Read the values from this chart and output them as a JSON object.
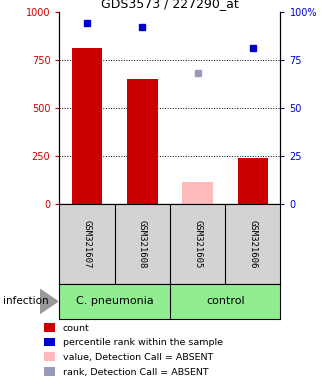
{
  "title": "GDS3573 / 227290_at",
  "samples": [
    "GSM321607",
    "GSM321608",
    "GSM321605",
    "GSM321606"
  ],
  "bar_values": [
    810,
    650,
    110,
    235
  ],
  "bar_colors": [
    "#cc0000",
    "#cc0000",
    "#ffbbbb",
    "#cc0000"
  ],
  "percentile_values": [
    94,
    92,
    68,
    81
  ],
  "percentile_colors": [
    "#0000cc",
    "#0000cc",
    "#9999bb",
    "#0000cc"
  ],
  "ylim_left": [
    0,
    1000
  ],
  "ylim_right": [
    0,
    100
  ],
  "yticks_left": [
    0,
    250,
    500,
    750,
    1000
  ],
  "ytick_right_vals": [
    0,
    25,
    50,
    75,
    100
  ],
  "ytick_right_labels": [
    "0",
    "25",
    "50",
    "75",
    "100%"
  ],
  "group_bg_color": "#90ee90",
  "sample_bg_color": "#d3d3d3",
  "legend_items": [
    {
      "label": "count",
      "color": "#cc0000"
    },
    {
      "label": "percentile rank within the sample",
      "color": "#0000cc"
    },
    {
      "label": "value, Detection Call = ABSENT",
      "color": "#ffbbbb"
    },
    {
      "label": "rank, Detection Call = ABSENT",
      "color": "#9999bb"
    }
  ],
  "bar_width": 0.55,
  "group_spans": [
    {
      "label": "C. pneumonia",
      "start": 0,
      "end": 2
    },
    {
      "label": "control",
      "start": 2,
      "end": 4
    }
  ]
}
